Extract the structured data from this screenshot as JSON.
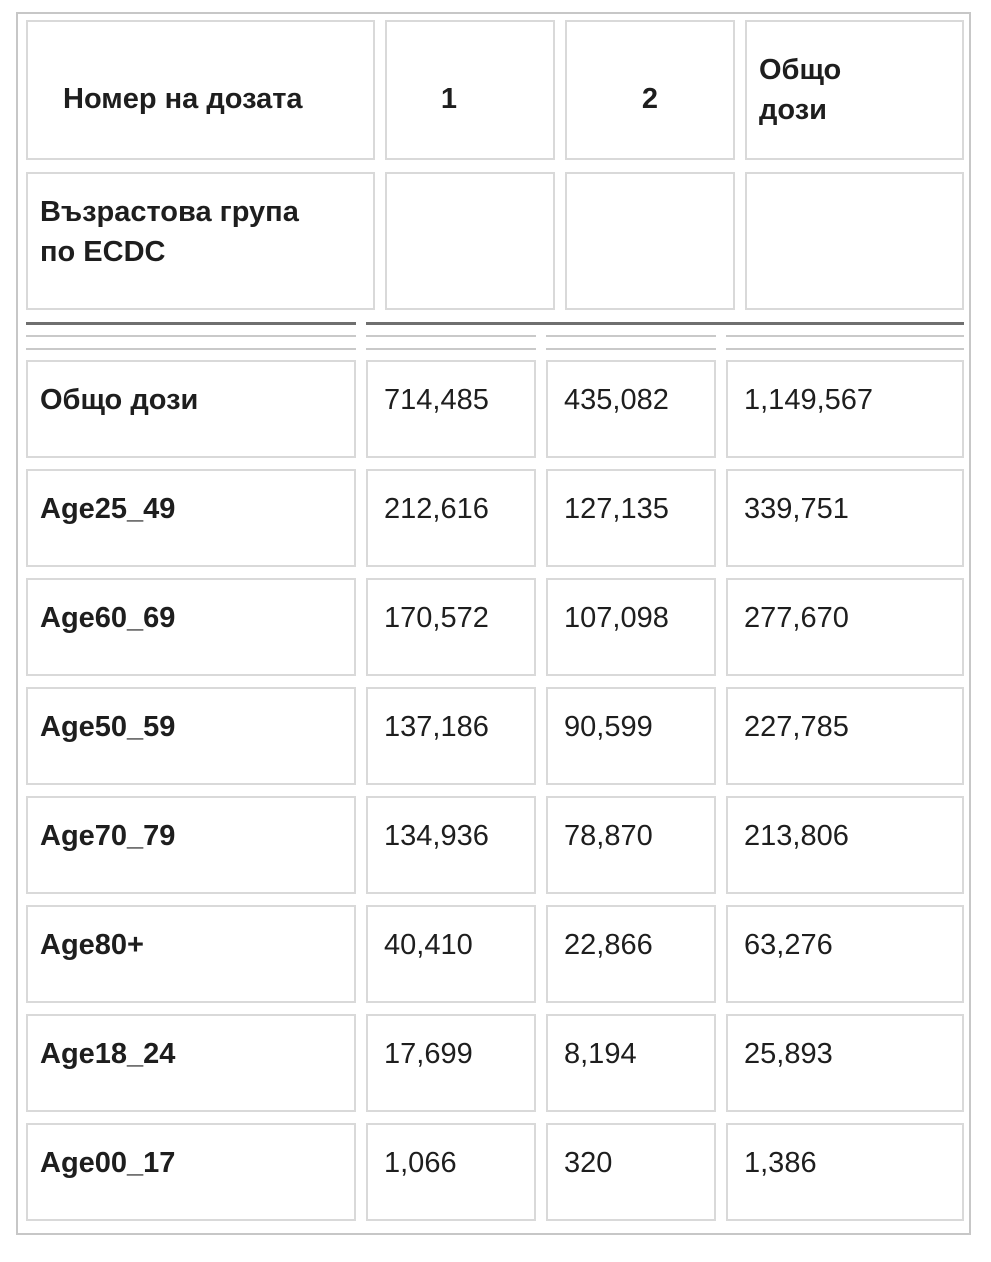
{
  "chart_data": {
    "type": "table",
    "corner_label": "Номер на дозата",
    "row_dimension_label": "Възрастова група по ECDC",
    "columns": [
      "Възрастова група по ECDC",
      "1",
      "2",
      "Общо дози"
    ],
    "rows": [
      [
        "Общо дози",
        714485,
        435082,
        1149567
      ],
      [
        "Age25_49",
        212616,
        127135,
        339751
      ],
      [
        "Age60_69",
        170572,
        107098,
        277670
      ],
      [
        "Age50_59",
        137186,
        90599,
        227785
      ],
      [
        "Age70_79",
        134936,
        78870,
        213806
      ],
      [
        "Age80+",
        40410,
        22866,
        63276
      ],
      [
        "Age18_24",
        17699,
        8194,
        25893
      ],
      [
        "Age00_17",
        1066,
        320,
        1386
      ]
    ]
  },
  "table": {
    "header": {
      "dose_label": "Номер на дозата",
      "dose1": "1",
      "dose2": "2",
      "total_line1": "Общо",
      "total_line2": "дози",
      "group_line1": "Възрастова група",
      "group_line2": "по ECDC"
    },
    "rows": [
      {
        "label": "Общо дози",
        "dose1": "714,485",
        "dose2": "435,082",
        "total": "1,149,567"
      },
      {
        "label": "Age25_49",
        "dose1": "212,616",
        "dose2": "127,135",
        "total": "339,751"
      },
      {
        "label": "Age60_69",
        "dose1": "170,572",
        "dose2": "107,098",
        "total": "277,670"
      },
      {
        "label": "Age50_59",
        "dose1": "137,186",
        "dose2": "90,599",
        "total": "227,785"
      },
      {
        "label": "Age70_79",
        "dose1": "134,936",
        "dose2": "78,870",
        "total": "213,806"
      },
      {
        "label": "Age80+",
        "dose1": "40,410",
        "dose2": "22,866",
        "total": "63,276"
      },
      {
        "label": "Age18_24",
        "dose1": "17,699",
        "dose2": "8,194",
        "total": "25,893"
      },
      {
        "label": "Age00_17",
        "dose1": "1,066",
        "dose2": "320",
        "total": "1,386"
      }
    ],
    "colors": {
      "cell_border": "#d9d9d9",
      "outer_border": "#c7c7c7",
      "separator_dark": "#6f6f6f",
      "separator_light": "#c9c9c9",
      "text": "#1e1e1e",
      "background": "#ffffff"
    }
  }
}
